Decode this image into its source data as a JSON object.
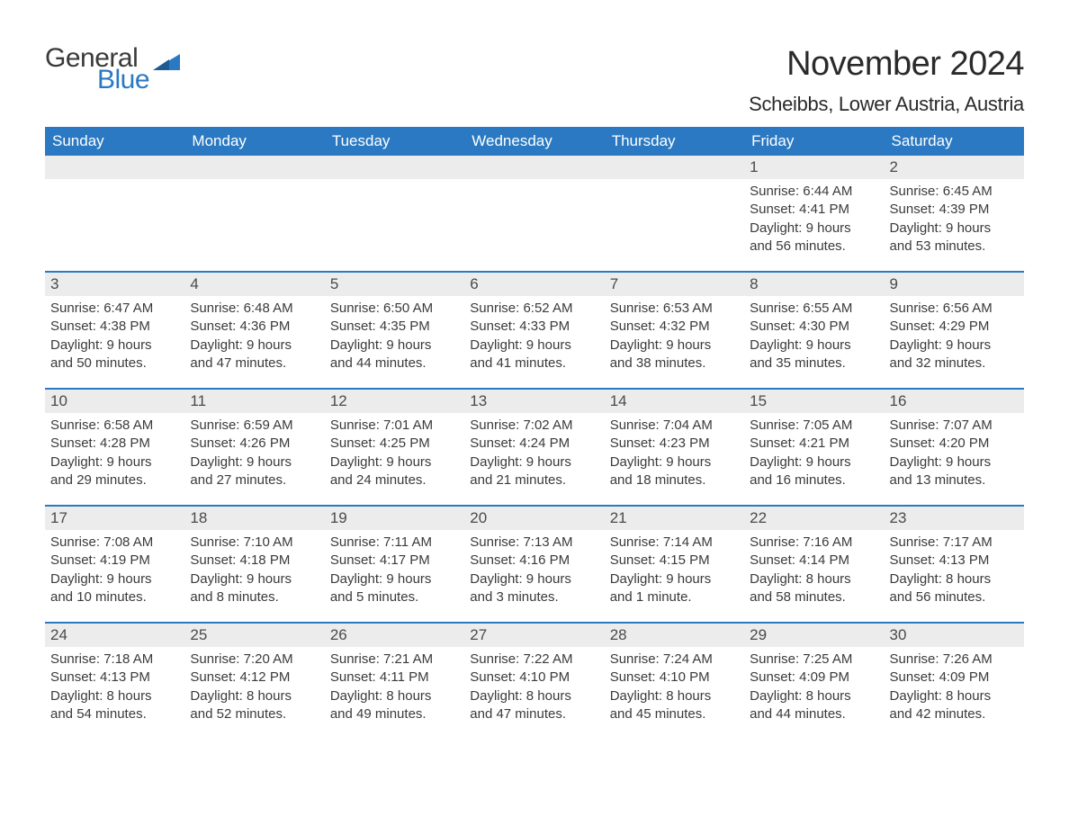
{
  "logo": {
    "general": "General",
    "blue": "Blue"
  },
  "title": "November 2024",
  "location": "Scheibbs, Lower Austria, Austria",
  "colors": {
    "brand_blue": "#2b79c2",
    "header_text": "#ffffff",
    "day_num_bg": "#ececec",
    "body_text": "#3a3a3a",
    "page_bg": "#ffffff"
  },
  "typography": {
    "title_fontsize": 38,
    "location_fontsize": 22,
    "header_fontsize": 17,
    "daynum_fontsize": 17,
    "body_fontsize": 15,
    "font_family": "Arial"
  },
  "layout": {
    "columns": 7,
    "rows": 5,
    "row_separator_color": "#2b79c2",
    "row_separator_width": 2
  },
  "weekdays": [
    "Sunday",
    "Monday",
    "Tuesday",
    "Wednesday",
    "Thursday",
    "Friday",
    "Saturday"
  ],
  "weeks": [
    [
      null,
      null,
      null,
      null,
      null,
      {
        "n": "1",
        "sunrise": "Sunrise: 6:44 AM",
        "sunset": "Sunset: 4:41 PM",
        "dl1": "Daylight: 9 hours",
        "dl2": "and 56 minutes."
      },
      {
        "n": "2",
        "sunrise": "Sunrise: 6:45 AM",
        "sunset": "Sunset: 4:39 PM",
        "dl1": "Daylight: 9 hours",
        "dl2": "and 53 minutes."
      }
    ],
    [
      {
        "n": "3",
        "sunrise": "Sunrise: 6:47 AM",
        "sunset": "Sunset: 4:38 PM",
        "dl1": "Daylight: 9 hours",
        "dl2": "and 50 minutes."
      },
      {
        "n": "4",
        "sunrise": "Sunrise: 6:48 AM",
        "sunset": "Sunset: 4:36 PM",
        "dl1": "Daylight: 9 hours",
        "dl2": "and 47 minutes."
      },
      {
        "n": "5",
        "sunrise": "Sunrise: 6:50 AM",
        "sunset": "Sunset: 4:35 PM",
        "dl1": "Daylight: 9 hours",
        "dl2": "and 44 minutes."
      },
      {
        "n": "6",
        "sunrise": "Sunrise: 6:52 AM",
        "sunset": "Sunset: 4:33 PM",
        "dl1": "Daylight: 9 hours",
        "dl2": "and 41 minutes."
      },
      {
        "n": "7",
        "sunrise": "Sunrise: 6:53 AM",
        "sunset": "Sunset: 4:32 PM",
        "dl1": "Daylight: 9 hours",
        "dl2": "and 38 minutes."
      },
      {
        "n": "8",
        "sunrise": "Sunrise: 6:55 AM",
        "sunset": "Sunset: 4:30 PM",
        "dl1": "Daylight: 9 hours",
        "dl2": "and 35 minutes."
      },
      {
        "n": "9",
        "sunrise": "Sunrise: 6:56 AM",
        "sunset": "Sunset: 4:29 PM",
        "dl1": "Daylight: 9 hours",
        "dl2": "and 32 minutes."
      }
    ],
    [
      {
        "n": "10",
        "sunrise": "Sunrise: 6:58 AM",
        "sunset": "Sunset: 4:28 PM",
        "dl1": "Daylight: 9 hours",
        "dl2": "and 29 minutes."
      },
      {
        "n": "11",
        "sunrise": "Sunrise: 6:59 AM",
        "sunset": "Sunset: 4:26 PM",
        "dl1": "Daylight: 9 hours",
        "dl2": "and 27 minutes."
      },
      {
        "n": "12",
        "sunrise": "Sunrise: 7:01 AM",
        "sunset": "Sunset: 4:25 PM",
        "dl1": "Daylight: 9 hours",
        "dl2": "and 24 minutes."
      },
      {
        "n": "13",
        "sunrise": "Sunrise: 7:02 AM",
        "sunset": "Sunset: 4:24 PM",
        "dl1": "Daylight: 9 hours",
        "dl2": "and 21 minutes."
      },
      {
        "n": "14",
        "sunrise": "Sunrise: 7:04 AM",
        "sunset": "Sunset: 4:23 PM",
        "dl1": "Daylight: 9 hours",
        "dl2": "and 18 minutes."
      },
      {
        "n": "15",
        "sunrise": "Sunrise: 7:05 AM",
        "sunset": "Sunset: 4:21 PM",
        "dl1": "Daylight: 9 hours",
        "dl2": "and 16 minutes."
      },
      {
        "n": "16",
        "sunrise": "Sunrise: 7:07 AM",
        "sunset": "Sunset: 4:20 PM",
        "dl1": "Daylight: 9 hours",
        "dl2": "and 13 minutes."
      }
    ],
    [
      {
        "n": "17",
        "sunrise": "Sunrise: 7:08 AM",
        "sunset": "Sunset: 4:19 PM",
        "dl1": "Daylight: 9 hours",
        "dl2": "and 10 minutes."
      },
      {
        "n": "18",
        "sunrise": "Sunrise: 7:10 AM",
        "sunset": "Sunset: 4:18 PM",
        "dl1": "Daylight: 9 hours",
        "dl2": "and 8 minutes."
      },
      {
        "n": "19",
        "sunrise": "Sunrise: 7:11 AM",
        "sunset": "Sunset: 4:17 PM",
        "dl1": "Daylight: 9 hours",
        "dl2": "and 5 minutes."
      },
      {
        "n": "20",
        "sunrise": "Sunrise: 7:13 AM",
        "sunset": "Sunset: 4:16 PM",
        "dl1": "Daylight: 9 hours",
        "dl2": "and 3 minutes."
      },
      {
        "n": "21",
        "sunrise": "Sunrise: 7:14 AM",
        "sunset": "Sunset: 4:15 PM",
        "dl1": "Daylight: 9 hours",
        "dl2": "and 1 minute."
      },
      {
        "n": "22",
        "sunrise": "Sunrise: 7:16 AM",
        "sunset": "Sunset: 4:14 PM",
        "dl1": "Daylight: 8 hours",
        "dl2": "and 58 minutes."
      },
      {
        "n": "23",
        "sunrise": "Sunrise: 7:17 AM",
        "sunset": "Sunset: 4:13 PM",
        "dl1": "Daylight: 8 hours",
        "dl2": "and 56 minutes."
      }
    ],
    [
      {
        "n": "24",
        "sunrise": "Sunrise: 7:18 AM",
        "sunset": "Sunset: 4:13 PM",
        "dl1": "Daylight: 8 hours",
        "dl2": "and 54 minutes."
      },
      {
        "n": "25",
        "sunrise": "Sunrise: 7:20 AM",
        "sunset": "Sunset: 4:12 PM",
        "dl1": "Daylight: 8 hours",
        "dl2": "and 52 minutes."
      },
      {
        "n": "26",
        "sunrise": "Sunrise: 7:21 AM",
        "sunset": "Sunset: 4:11 PM",
        "dl1": "Daylight: 8 hours",
        "dl2": "and 49 minutes."
      },
      {
        "n": "27",
        "sunrise": "Sunrise: 7:22 AM",
        "sunset": "Sunset: 4:10 PM",
        "dl1": "Daylight: 8 hours",
        "dl2": "and 47 minutes."
      },
      {
        "n": "28",
        "sunrise": "Sunrise: 7:24 AM",
        "sunset": "Sunset: 4:10 PM",
        "dl1": "Daylight: 8 hours",
        "dl2": "and 45 minutes."
      },
      {
        "n": "29",
        "sunrise": "Sunrise: 7:25 AM",
        "sunset": "Sunset: 4:09 PM",
        "dl1": "Daylight: 8 hours",
        "dl2": "and 44 minutes."
      },
      {
        "n": "30",
        "sunrise": "Sunrise: 7:26 AM",
        "sunset": "Sunset: 4:09 PM",
        "dl1": "Daylight: 8 hours",
        "dl2": "and 42 minutes."
      }
    ]
  ]
}
